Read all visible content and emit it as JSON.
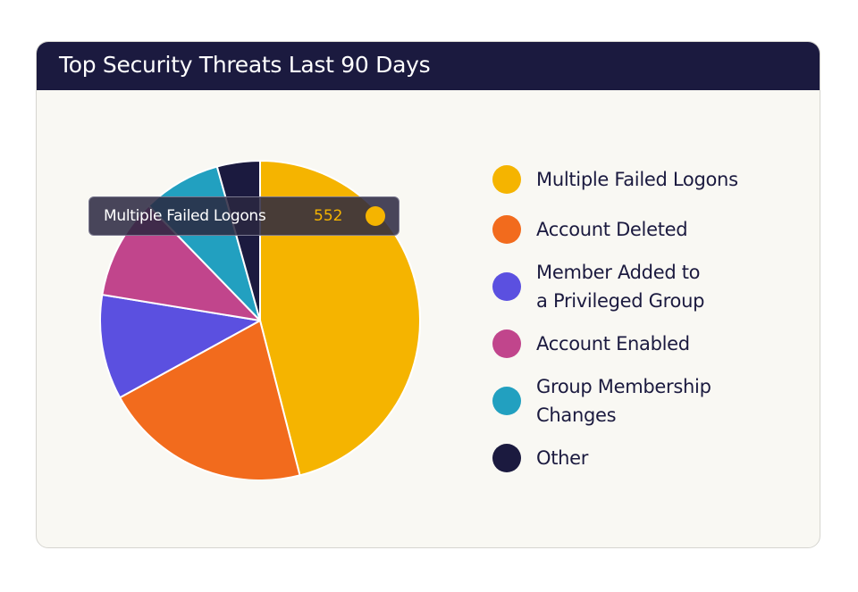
{
  "card": {
    "title": "Top Security Threats Last 90 Days"
  },
  "chart_data": {
    "type": "pie",
    "title": "Top Security Threats Last 90 Days",
    "legend_position": "right",
    "slices": [
      {
        "label": "Multiple Failed Logons",
        "value": 552,
        "color": "#f5b400"
      },
      {
        "label": "Account Deleted",
        "value": 252,
        "color": "#f26b1d"
      },
      {
        "label": "Member Added to a Privileged Group",
        "value": 127,
        "color": "#5b50e0"
      },
      {
        "label": "Account Enabled",
        "value": 122,
        "color": "#c1458c"
      },
      {
        "label": "Group Membership Changes",
        "value": 95,
        "color": "#22a0c0"
      },
      {
        "label": "Other",
        "value": 52,
        "color": "#1b1a3f"
      }
    ]
  },
  "tooltip": {
    "label": "Multiple Failed Logons",
    "value": "552",
    "color": "#f5b400"
  },
  "legend": {
    "items": [
      {
        "lines": [
          "Multiple Failed Logons"
        ],
        "color": "#f5b400"
      },
      {
        "lines": [
          "Account Deleted"
        ],
        "color": "#f26b1d"
      },
      {
        "lines": [
          "Member Added to",
          "a Privileged Group"
        ],
        "color": "#5b50e0"
      },
      {
        "lines": [
          "Account Enabled"
        ],
        "color": "#c1458c"
      },
      {
        "lines": [
          "Group Membership",
          "Changes"
        ],
        "color": "#22a0c0"
      },
      {
        "lines": [
          "Other"
        ],
        "color": "#1b1a3f"
      }
    ]
  }
}
